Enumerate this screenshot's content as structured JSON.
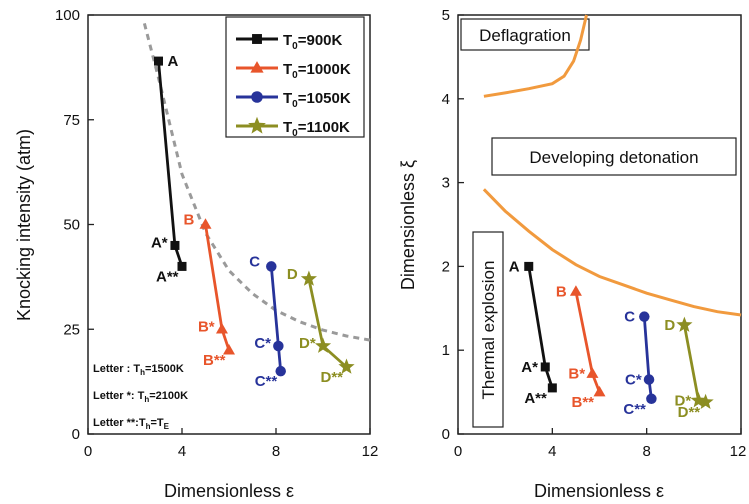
{
  "chart_data": [
    {
      "type": "line",
      "xlabel": "Dimensionless ε",
      "ylabel": "Knocking intensity (atm)",
      "xlim": [
        0,
        12
      ],
      "ylim": [
        0,
        100
      ],
      "xticks": [
        "0",
        "4",
        "8",
        "12"
      ],
      "yticks": [
        "0",
        "25",
        "50",
        "75",
        "100"
      ],
      "grid": false,
      "legend_position": "top-right",
      "legend": [
        {
          "series": 0,
          "base": "T",
          "sub": "0",
          "tail": "=900K"
        },
        {
          "series": 1,
          "base": "T",
          "sub": "0",
          "tail": "=1000K"
        },
        {
          "series": 2,
          "base": "T",
          "sub": "0",
          "tail": "=1050K"
        },
        {
          "series": 3,
          "base": "T",
          "sub": "0",
          "tail": "=1100K"
        }
      ],
      "series": [
        {
          "color": "#111111",
          "marker": "square",
          "labels": [
            "A",
            "A*",
            "A**"
          ],
          "points": [
            [
              3.0,
              89
            ],
            [
              3.7,
              45
            ],
            [
              4.0,
              40
            ]
          ]
        },
        {
          "color": "#e8552b",
          "marker": "triangle",
          "labels": [
            "B",
            "B*",
            "B**"
          ],
          "points": [
            [
              5.0,
              50
            ],
            [
              5.7,
              25
            ],
            [
              6.0,
              20
            ]
          ]
        },
        {
          "color": "#27339a",
          "marker": "circle",
          "labels": [
            "C",
            "C*",
            "C**"
          ],
          "points": [
            [
              7.8,
              40
            ],
            [
              8.1,
              21
            ],
            [
              8.2,
              15
            ]
          ]
        },
        {
          "color": "#8c8e22",
          "marker": "star",
          "labels": [
            "D",
            "D*",
            "D**"
          ],
          "points": [
            [
              9.4,
              37
            ],
            [
              10.0,
              21
            ],
            [
              11.0,
              16
            ]
          ]
        }
      ],
      "dashed_curve": {
        "color": "#9a9a9a",
        "points": [
          [
            2.4,
            98
          ],
          [
            3,
            85
          ],
          [
            4,
            62
          ],
          [
            5,
            48
          ],
          [
            6,
            39
          ],
          [
            7,
            33.5
          ],
          [
            8,
            29.5
          ],
          [
            9,
            26.8
          ],
          [
            10,
            24.8
          ],
          [
            11,
            23.4
          ],
          [
            12,
            22.4
          ]
        ]
      },
      "notes": [
        {
          "pre": "Letter :  T",
          "sub": "h",
          "post": "=1500K"
        },
        {
          "pre": "Letter *: T",
          "sub": "h",
          "post": "=2100K"
        },
        {
          "pre": "Letter **:T",
          "sub": "h",
          "post": "=T",
          "sub2": "E"
        }
      ]
    },
    {
      "type": "line",
      "xlabel": "Dimensionless ε",
      "ylabel": "Dimensionless ξ",
      "xlim": [
        0,
        12
      ],
      "ylim": [
        0,
        5
      ],
      "xticks": [
        "0",
        "4",
        "8",
        "12"
      ],
      "yticks": [
        "0",
        "1",
        "2",
        "3",
        "4",
        "5"
      ],
      "grid": false,
      "regions": [
        "Deflagration",
        "Developing detonation",
        "Thermal explosion"
      ],
      "boundary_color": "#f19a3e",
      "upper_boundary": [
        [
          1.1,
          4.03
        ],
        [
          2,
          4.07
        ],
        [
          3,
          4.12
        ],
        [
          4,
          4.18
        ],
        [
          4.5,
          4.27
        ],
        [
          4.9,
          4.45
        ],
        [
          5.2,
          4.7
        ],
        [
          5.45,
          5.0
        ]
      ],
      "lower_boundary": [
        [
          1.1,
          2.92
        ],
        [
          2,
          2.66
        ],
        [
          3,
          2.42
        ],
        [
          4,
          2.2
        ],
        [
          5,
          2.02
        ],
        [
          6,
          1.88
        ],
        [
          7,
          1.78
        ],
        [
          8,
          1.68
        ],
        [
          9,
          1.6
        ],
        [
          10,
          1.52
        ],
        [
          11,
          1.46
        ],
        [
          12,
          1.42
        ]
      ],
      "series": [
        {
          "color": "#111111",
          "marker": "square",
          "labels": [
            "A",
            "A*",
            "A**"
          ],
          "points": [
            [
              3.0,
              2.0
            ],
            [
              3.7,
              0.8
            ],
            [
              4.0,
              0.55
            ]
          ]
        },
        {
          "color": "#e8552b",
          "marker": "triangle",
          "labels": [
            "B",
            "B*",
            "B**"
          ],
          "points": [
            [
              5.0,
              1.7
            ],
            [
              5.7,
              0.72
            ],
            [
              6.0,
              0.5
            ]
          ]
        },
        {
          "color": "#27339a",
          "marker": "circle",
          "labels": [
            "C",
            "C*",
            "C**"
          ],
          "points": [
            [
              7.9,
              1.4
            ],
            [
              8.1,
              0.65
            ],
            [
              8.2,
              0.42
            ]
          ]
        },
        {
          "color": "#8c8e22",
          "marker": "star",
          "labels": [
            "D",
            "D*",
            "D**"
          ],
          "points": [
            [
              9.6,
              1.3
            ],
            [
              10.2,
              0.4
            ],
            [
              10.5,
              0.38
            ]
          ]
        }
      ]
    }
  ]
}
